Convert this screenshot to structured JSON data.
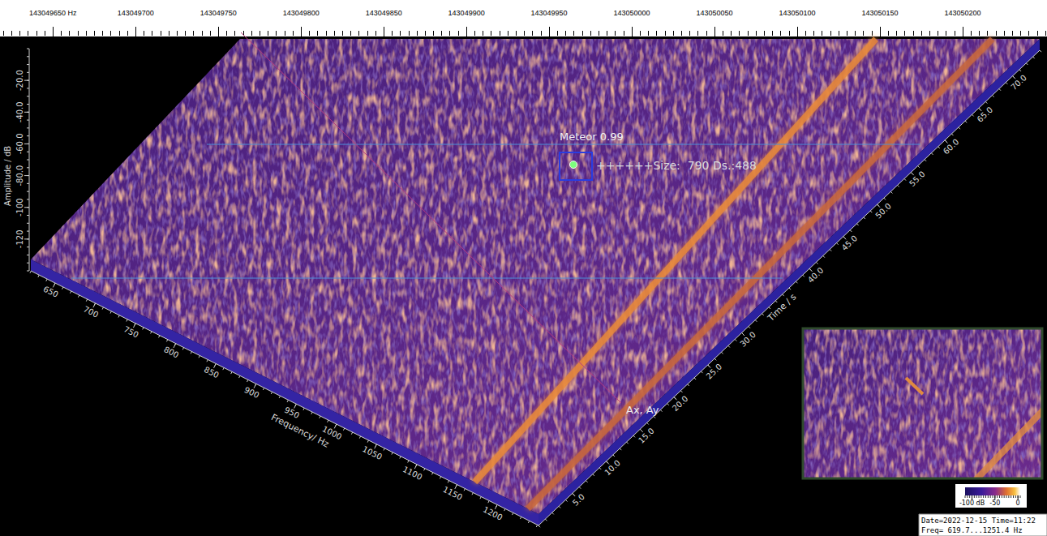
{
  "chart_data": {
    "type": "waterfall",
    "top_axis": {
      "xlim": [
        143049618,
        143050251
      ],
      "xticks": [
        {
          "value": 143049650,
          "label": "143049650 Hz"
        },
        143049700,
        143049750,
        143049800,
        143049850,
        143049900,
        143049950,
        143050000,
        143050050,
        143050100,
        143050150,
        143050200
      ]
    },
    "x_label": "Frequency/ Hz",
    "xlim": [
      619.7,
      1251.4
    ],
    "xticks": [
      650,
      700,
      750,
      800,
      850,
      900,
      950,
      1000,
      1050,
      1100,
      1150,
      1200
    ],
    "y_label": "Time / s",
    "ylim": [
      0,
      74
    ],
    "yticks": [
      {
        "value": 5,
        "label": "5.0"
      },
      {
        "value": 10,
        "label": "10.0"
      },
      {
        "value": 15,
        "label": "15.0"
      },
      {
        "value": 20,
        "label": "20.0"
      },
      {
        "value": 25,
        "label": "25.0"
      },
      {
        "value": 30,
        "label": "30.0"
      },
      {
        "value": 40,
        "label": "40.0"
      },
      {
        "value": 45,
        "label": "45.0"
      },
      {
        "value": 50,
        "label": "50.0"
      },
      {
        "value": 55,
        "label": "55.0"
      },
      {
        "value": 60,
        "label": "60.0"
      },
      {
        "value": 65,
        "label": "65.0"
      },
      {
        "value": 70,
        "label": "70.0"
      }
    ],
    "z_label": "Amplitude / dB",
    "zlim": [
      -140,
      0
    ],
    "zticks": [
      {
        "value": -20,
        "label": "-20.0"
      },
      {
        "value": -40,
        "label": "-40.0"
      },
      {
        "value": -60,
        "label": "-60.0"
      },
      {
        "value": -80,
        "label": "-80.0"
      },
      -100,
      -120
    ],
    "traces": [
      {
        "f_start": 1172,
        "f_end": 1122,
        "color": "#e8893a"
      },
      {
        "f_start": 1238,
        "f_end": 1214,
        "color": "#c8683c"
      }
    ],
    "detection": {
      "title": "Meteor 0.99",
      "info": "++++++Size:  790 Ds.:488"
    },
    "marker_label": "Ax, Ay",
    "colorbar": {
      "range": [
        -115,
        5
      ],
      "ticks": [
        {
          "value": -100,
          "label": "-100 dB"
        },
        -50,
        0
      ]
    },
    "info": [
      "Date=2022-12-15 Time=11:22",
      "Freq= 619.7...1251.4 Hz"
    ]
  }
}
